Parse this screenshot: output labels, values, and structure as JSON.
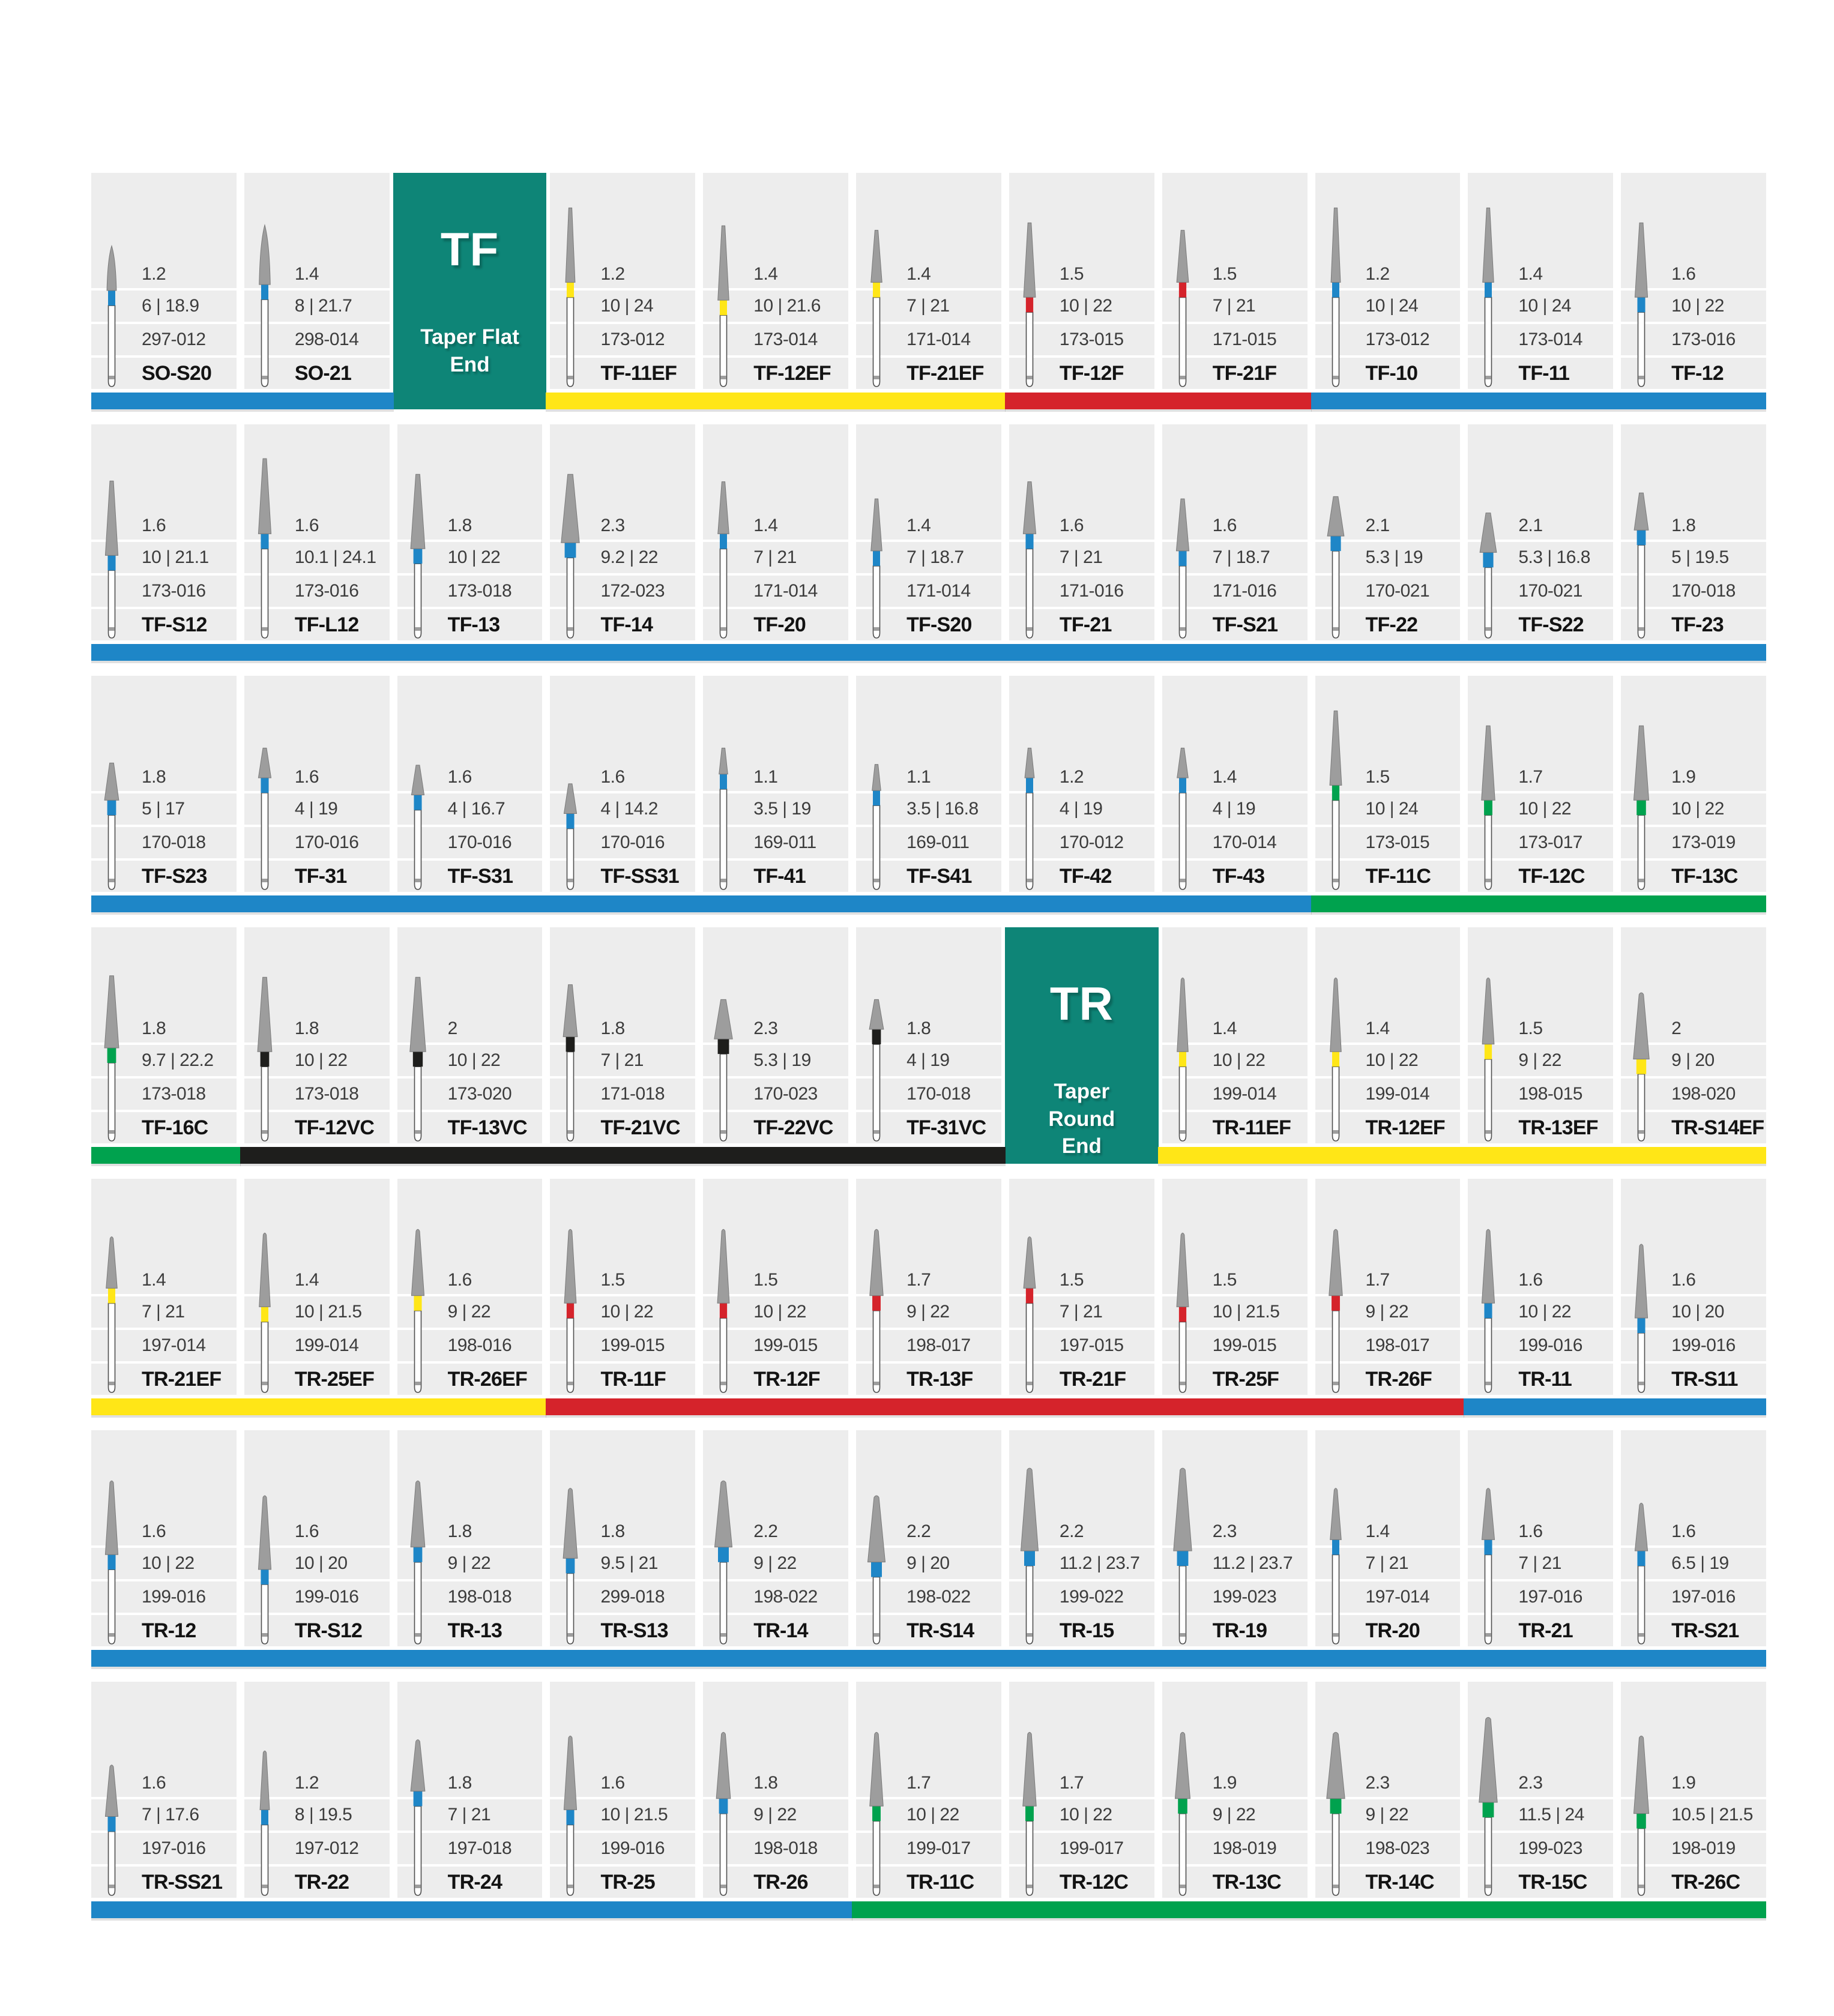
{
  "colors": {
    "teal": "#0E8577",
    "blue": "#1E86C7",
    "yellow": "#FFE617",
    "red": "#D5232B",
    "green": "#00A24E",
    "black": "#1E1E1C",
    "cell_bg": "#EDEDED",
    "bur_gray": "#9D9D9D",
    "bur_outline": "#4F4F4F",
    "text": "#3C3C3C",
    "name_text": "#131313"
  },
  "rows": [
    {
      "cells": [
        {
          "name": "SO-S20",
          "dia": "1.2",
          "dims": "6 | 18.9",
          "iso": "297-012",
          "band": "blue"
        },
        {
          "name": "SO-21",
          "dia": "1.4",
          "dims": "8 | 21.7",
          "iso": "298-014",
          "band": "blue"
        },
        {
          "header": true,
          "code": "TF",
          "label": "Taper Flat End"
        },
        {
          "name": "TF-11EF",
          "dia": "1.2",
          "dims": "10 | 24",
          "iso": "173-012",
          "band": "yellow"
        },
        {
          "name": "TF-12EF",
          "dia": "1.4",
          "dims": "10 | 21.6",
          "iso": "173-014",
          "band": "yellow"
        },
        {
          "name": "TF-21EF",
          "dia": "1.4",
          "dims": "7 | 21",
          "iso": "171-014",
          "band": "yellow"
        },
        {
          "name": "TF-12F",
          "dia": "1.5",
          "dims": "10 | 22",
          "iso": "173-015",
          "band": "red"
        },
        {
          "name": "TF-21F",
          "dia": "1.5",
          "dims": "7 | 21",
          "iso": "171-015",
          "band": "red"
        },
        {
          "name": "TF-10",
          "dia": "1.2",
          "dims": "10 | 24",
          "iso": "173-012",
          "band": "blue"
        },
        {
          "name": "TF-11",
          "dia": "1.4",
          "dims": "10 | 24",
          "iso": "173-014",
          "band": "blue"
        },
        {
          "name": "TF-12",
          "dia": "1.6",
          "dims": "10 | 22",
          "iso": "173-016",
          "band": "blue"
        }
      ],
      "bar": [
        {
          "color": "blue",
          "span": 2
        },
        {
          "gap": true,
          "span": 1
        },
        {
          "color": "yellow",
          "span": 3
        },
        {
          "color": "red",
          "span": 2
        },
        {
          "color": "blue",
          "span": 3
        }
      ]
    },
    {
      "cells": [
        {
          "name": "TF-S12",
          "dia": "1.6",
          "dims": "10 | 21.1",
          "iso": "173-016",
          "band": "blue"
        },
        {
          "name": "TF-L12",
          "dia": "1.6",
          "dims": "10.1 | 24.1",
          "iso": "173-016",
          "band": "blue"
        },
        {
          "name": "TF-13",
          "dia": "1.8",
          "dims": "10 | 22",
          "iso": "173-018",
          "band": "blue"
        },
        {
          "name": "TF-14",
          "dia": "2.3",
          "dims": "9.2 | 22",
          "iso": "172-023",
          "band": "blue"
        },
        {
          "name": "TF-20",
          "dia": "1.4",
          "dims": "7 | 21",
          "iso": "171-014",
          "band": "blue"
        },
        {
          "name": "TF-S20",
          "dia": "1.4",
          "dims": "7 | 18.7",
          "iso": "171-014",
          "band": "blue"
        },
        {
          "name": "TF-21",
          "dia": "1.6",
          "dims": "7 | 21",
          "iso": "171-016",
          "band": "blue"
        },
        {
          "name": "TF-S21",
          "dia": "1.6",
          "dims": "7 | 18.7",
          "iso": "171-016",
          "band": "blue"
        },
        {
          "name": "TF-22",
          "dia": "2.1",
          "dims": "5.3 | 19",
          "iso": "170-021",
          "band": "blue"
        },
        {
          "name": "TF-S22",
          "dia": "2.1",
          "dims": "5.3 | 16.8",
          "iso": "170-021",
          "band": "blue"
        },
        {
          "name": "TF-23",
          "dia": "1.8",
          "dims": "5 | 19.5",
          "iso": "170-018",
          "band": "blue"
        }
      ],
      "bar": [
        {
          "color": "blue",
          "span": 11
        }
      ]
    },
    {
      "cells": [
        {
          "name": "TF-S23",
          "dia": "1.8",
          "dims": "5 | 17",
          "iso": "170-018",
          "band": "blue"
        },
        {
          "name": "TF-31",
          "dia": "1.6",
          "dims": "4 | 19",
          "iso": "170-016",
          "band": "blue"
        },
        {
          "name": "TF-S31",
          "dia": "1.6",
          "dims": "4 | 16.7",
          "iso": "170-016",
          "band": "blue"
        },
        {
          "name": "TF-SS31",
          "dia": "1.6",
          "dims": "4 | 14.2",
          "iso": "170-016",
          "band": "blue"
        },
        {
          "name": "TF-41",
          "dia": "1.1",
          "dims": "3.5 | 19",
          "iso": "169-011",
          "band": "blue"
        },
        {
          "name": "TF-S41",
          "dia": "1.1",
          "dims": "3.5 | 16.8",
          "iso": "169-011",
          "band": "blue"
        },
        {
          "name": "TF-42",
          "dia": "1.2",
          "dims": "4 | 19",
          "iso": "170-012",
          "band": "blue"
        },
        {
          "name": "TF-43",
          "dia": "1.4",
          "dims": "4 | 19",
          "iso": "170-014",
          "band": "blue"
        },
        {
          "name": "TF-11C",
          "dia": "1.5",
          "dims": "10 | 24",
          "iso": "173-015",
          "band": "green"
        },
        {
          "name": "TF-12C",
          "dia": "1.7",
          "dims": "10 | 22",
          "iso": "173-017",
          "band": "green"
        },
        {
          "name": "TF-13C",
          "dia": "1.9",
          "dims": "10 | 22",
          "iso": "173-019",
          "band": "green"
        }
      ],
      "bar": [
        {
          "color": "blue",
          "span": 8
        },
        {
          "color": "green",
          "span": 3
        }
      ]
    },
    {
      "cells": [
        {
          "name": "TF-16C",
          "dia": "1.8",
          "dims": "9.7 | 22.2",
          "iso": "173-018",
          "band": "green"
        },
        {
          "name": "TF-12VC",
          "dia": "1.8",
          "dims": "10 | 22",
          "iso": "173-018",
          "band": "black"
        },
        {
          "name": "TF-13VC",
          "dia": "2",
          "dims": "10 | 22",
          "iso": "173-020",
          "band": "black"
        },
        {
          "name": "TF-21VC",
          "dia": "1.8",
          "dims": "7 | 21",
          "iso": "171-018",
          "band": "black"
        },
        {
          "name": "TF-22VC",
          "dia": "2.3",
          "dims": "5.3 | 19",
          "iso": "170-023",
          "band": "black"
        },
        {
          "name": "TF-31VC",
          "dia": "1.8",
          "dims": "4 | 19",
          "iso": "170-018",
          "band": "black"
        },
        {
          "header": true,
          "code": "TR",
          "label": "Taper Round End"
        },
        {
          "name": "TR-11EF",
          "dia": "1.4",
          "dims": "10 | 22",
          "iso": "199-014",
          "band": "yellow"
        },
        {
          "name": "TR-12EF",
          "dia": "1.4",
          "dims": "10 | 22",
          "iso": "199-014",
          "band": "yellow"
        },
        {
          "name": "TR-13EF",
          "dia": "1.5",
          "dims": "9 | 22",
          "iso": "198-015",
          "band": "yellow"
        },
        {
          "name": "TR-S14EF",
          "dia": "2",
          "dims": "9 | 20",
          "iso": "198-020",
          "band": "yellow"
        }
      ],
      "bar": [
        {
          "color": "green",
          "span": 1
        },
        {
          "color": "black",
          "span": 5
        },
        {
          "gap": true,
          "span": 1
        },
        {
          "color": "yellow",
          "span": 4
        }
      ]
    },
    {
      "cells": [
        {
          "name": "TR-21EF",
          "dia": "1.4",
          "dims": "7 | 21",
          "iso": "197-014",
          "band": "yellow"
        },
        {
          "name": "TR-25EF",
          "dia": "1.4",
          "dims": "10 | 21.5",
          "iso": "199-014",
          "band": "yellow"
        },
        {
          "name": "TR-26EF",
          "dia": "1.6",
          "dims": "9 | 22",
          "iso": "198-016",
          "band": "yellow"
        },
        {
          "name": "TR-11F",
          "dia": "1.5",
          "dims": "10 | 22",
          "iso": "199-015",
          "band": "red"
        },
        {
          "name": "TR-12F",
          "dia": "1.5",
          "dims": "10 | 22",
          "iso": "199-015",
          "band": "red"
        },
        {
          "name": "TR-13F",
          "dia": "1.7",
          "dims": "9 | 22",
          "iso": "198-017",
          "band": "red"
        },
        {
          "name": "TR-21F",
          "dia": "1.5",
          "dims": "7 | 21",
          "iso": "197-015",
          "band": "red"
        },
        {
          "name": "TR-25F",
          "dia": "1.5",
          "dims": "10 | 21.5",
          "iso": "199-015",
          "band": "red"
        },
        {
          "name": "TR-26F",
          "dia": "1.7",
          "dims": "9 | 22",
          "iso": "198-017",
          "band": "red"
        },
        {
          "name": "TR-11",
          "dia": "1.6",
          "dims": "10 | 22",
          "iso": "199-016",
          "band": "blue"
        },
        {
          "name": "TR-S11",
          "dia": "1.6",
          "dims": "10 | 20",
          "iso": "199-016",
          "band": "blue"
        }
      ],
      "bar": [
        {
          "color": "yellow",
          "span": 3
        },
        {
          "color": "red",
          "span": 6
        },
        {
          "color": "blue",
          "span": 2
        }
      ]
    },
    {
      "cells": [
        {
          "name": "TR-12",
          "dia": "1.6",
          "dims": "10 | 22",
          "iso": "199-016",
          "band": "blue"
        },
        {
          "name": "TR-S12",
          "dia": "1.6",
          "dims": "10 | 20",
          "iso": "199-016",
          "band": "blue"
        },
        {
          "name": "TR-13",
          "dia": "1.8",
          "dims": "9 | 22",
          "iso": "198-018",
          "band": "blue"
        },
        {
          "name": "TR-S13",
          "dia": "1.8",
          "dims": "9.5 | 21",
          "iso": "299-018",
          "band": "blue"
        },
        {
          "name": "TR-14",
          "dia": "2.2",
          "dims": "9 | 22",
          "iso": "198-022",
          "band": "blue"
        },
        {
          "name": "TR-S14",
          "dia": "2.2",
          "dims": "9 | 20",
          "iso": "198-022",
          "band": "blue"
        },
        {
          "name": "TR-15",
          "dia": "2.2",
          "dims": "11.2 | 23.7",
          "iso": "199-022",
          "band": "blue"
        },
        {
          "name": "TR-19",
          "dia": "2.3",
          "dims": "11.2 | 23.7",
          "iso": "199-023",
          "band": "blue"
        },
        {
          "name": "TR-20",
          "dia": "1.4",
          "dims": "7 | 21",
          "iso": "197-014",
          "band": "blue"
        },
        {
          "name": "TR-21",
          "dia": "1.6",
          "dims": "7 | 21",
          "iso": "197-016",
          "band": "blue"
        },
        {
          "name": "TR-S21",
          "dia": "1.6",
          "dims": "6.5 | 19",
          "iso": "197-016",
          "band": "blue"
        }
      ],
      "bar": [
        {
          "color": "blue",
          "span": 11
        }
      ]
    },
    {
      "cells": [
        {
          "name": "TR-SS21",
          "dia": "1.6",
          "dims": "7 | 17.6",
          "iso": "197-016",
          "band": "blue"
        },
        {
          "name": "TR-22",
          "dia": "1.2",
          "dims": "8 | 19.5",
          "iso": "197-012",
          "band": "blue"
        },
        {
          "name": "TR-24",
          "dia": "1.8",
          "dims": "7 | 21",
          "iso": "197-018",
          "band": "blue"
        },
        {
          "name": "TR-25",
          "dia": "1.6",
          "dims": "10 | 21.5",
          "iso": "199-016",
          "band": "blue"
        },
        {
          "name": "TR-26",
          "dia": "1.8",
          "dims": "9 | 22",
          "iso": "198-018",
          "band": "blue"
        },
        {
          "name": "TR-11C",
          "dia": "1.7",
          "dims": "10 | 22",
          "iso": "199-017",
          "band": "green"
        },
        {
          "name": "TR-12C",
          "dia": "1.7",
          "dims": "10 | 22",
          "iso": "199-017",
          "band": "green"
        },
        {
          "name": "TR-13C",
          "dia": "1.9",
          "dims": "9 | 22",
          "iso": "198-019",
          "band": "green"
        },
        {
          "name": "TR-14C",
          "dia": "2.3",
          "dims": "9 | 22",
          "iso": "198-023",
          "band": "green"
        },
        {
          "name": "TR-15C",
          "dia": "2.3",
          "dims": "11.5 | 24",
          "iso": "199-023",
          "band": "green"
        },
        {
          "name": "TR-26C",
          "dia": "1.9",
          "dims": "10.5 | 21.5",
          "iso": "198-019",
          "band": "green"
        }
      ],
      "bar": [
        {
          "color": "blue",
          "span": 5
        },
        {
          "color": "green",
          "span": 6
        }
      ]
    }
  ]
}
